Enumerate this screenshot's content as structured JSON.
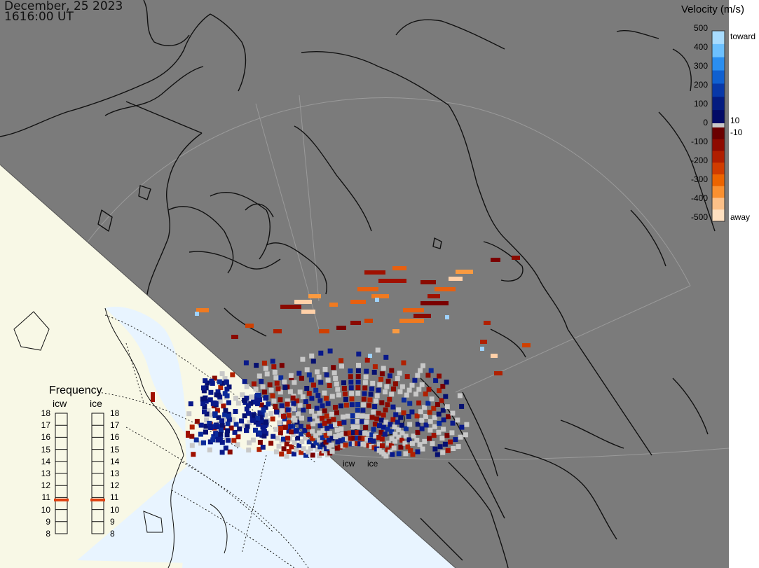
{
  "header": {
    "date": "December, 25 2023",
    "time": "1616:00 UT"
  },
  "colorbar": {
    "title": "Velocity (m/s)",
    "toward_label": "toward",
    "away_label": "away",
    "ticks": [
      "500",
      "400",
      "300",
      "200",
      "100",
      "0",
      "-100",
      "-200",
      "-300",
      "-400",
      "-500"
    ],
    "inner_ticks": [
      "10",
      "-10"
    ],
    "toward_colors": [
      "#a8dcff",
      "#6cc0ff",
      "#2a8ef0",
      "#1060d0",
      "#0838a8",
      "#041c80",
      "#020a66"
    ],
    "away_colors": [
      "#6a0000",
      "#8e0a00",
      "#b01e00",
      "#d03c00",
      "#ec6400",
      "#fa9030",
      "#fcc088",
      "#ffe0c0"
    ]
  },
  "frequency": {
    "title": "Frequency",
    "col_left": "icw",
    "col_right": "ice",
    "scale": [
      "18",
      "17",
      "16",
      "15",
      "14",
      "13",
      "12",
      "11",
      "10",
      "9",
      "8"
    ],
    "icw_mhz": 10.8,
    "ice_mhz": 10.8,
    "marker_color": "#e04010"
  },
  "radars": {
    "site_left": "icw",
    "site_right": "ice"
  },
  "colors": {
    "night": "#7b7b7b",
    "day_land": "#f8f8e6",
    "day_ocean": "#e8f4ff",
    "no_velocity": "#c8c8c8"
  }
}
